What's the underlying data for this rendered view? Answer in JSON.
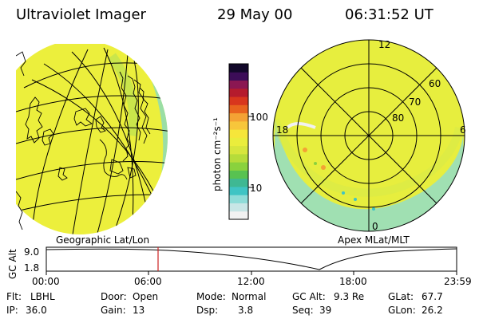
{
  "header": {
    "instrument": "Ultraviolet Imager",
    "date": "29 May 00",
    "time": "06:31:52 UT"
  },
  "colorbar": {
    "unit_label": "photon cm⁻²s⁻¹",
    "ticks": [
      {
        "label": "100",
        "value": 100
      },
      {
        "label": "10",
        "value": 10
      }
    ],
    "colors": [
      "#f2f2f2",
      "#c8e6e6",
      "#8edcd8",
      "#3fc4c4",
      "#3fb893",
      "#58c251",
      "#8ad23d",
      "#b6dc3a",
      "#d7e63d",
      "#eaed3c",
      "#f6e63a",
      "#f7c63b",
      "#f4a234",
      "#e8641e",
      "#d8361d",
      "#b51b2d",
      "#8b1752",
      "#3c0d58",
      "#12082a"
    ]
  },
  "geo_panel": {
    "label": "Geographic Lat/Lon",
    "fill_color": "#ecef3c",
    "edge_color": "#7fd8c8"
  },
  "polar_panel": {
    "label": "Apex MLat/MLT",
    "mlt_labels": {
      "top": "12",
      "left": "18",
      "right": "6",
      "bottom": "0"
    },
    "lat_labels": [
      "60",
      "70",
      "80"
    ],
    "fill_color": "#e7ee3e",
    "edge_color": "#8fdcd0"
  },
  "altitude_plot": {
    "ylabel": "GC Alt",
    "yticks": [
      "9.0",
      "1.8"
    ],
    "xticks": [
      "00:00",
      "06:00",
      "12:00",
      "18:00",
      "23:59"
    ],
    "cursor_color": "#cc2222",
    "cursor_time": "06:31:52"
  },
  "status": {
    "flt_label": "Flt:",
    "flt_value": "LBHL",
    "ip_label": "IP:",
    "ip_value": "36.0",
    "door_label": "Door:",
    "door_value": "Open",
    "gain_label": "Gain:",
    "gain_value": "13",
    "mode_label": "Mode:",
    "mode_value": "Normal",
    "dsp_label": "Dsp:",
    "dsp_value": "3.8",
    "gcalt_label": "GC Alt:",
    "gcalt_value": "9.3 Re",
    "seq_label": "Seq:",
    "seq_value": "39",
    "glat_label": "GLat:",
    "glat_value": "67.7",
    "glon_label": "GLon:",
    "glon_value": "26.2"
  }
}
